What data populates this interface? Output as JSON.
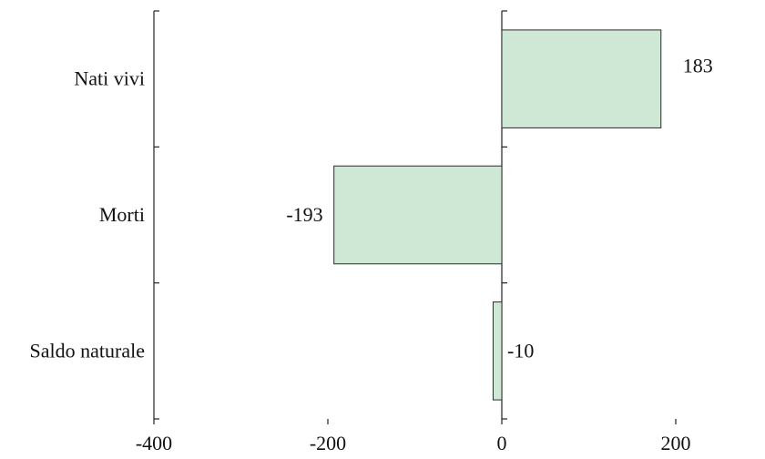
{
  "chart_data": {
    "type": "bar",
    "orientation": "horizontal",
    "categories": [
      "Nati vivi",
      "Morti",
      "Saldo naturale"
    ],
    "values": [
      183,
      -193,
      -10
    ],
    "data_labels": [
      "183",
      "-193",
      "-10"
    ],
    "xlim": [
      -400,
      300
    ],
    "xticks": [
      -400,
      -200,
      0,
      200
    ],
    "xtick_labels": [
      "-400",
      "-200",
      "0",
      "200"
    ],
    "grid": false,
    "legend": "none",
    "bar_color": "#cfe8d6",
    "bar_edge_color": "#2b2b2b"
  }
}
